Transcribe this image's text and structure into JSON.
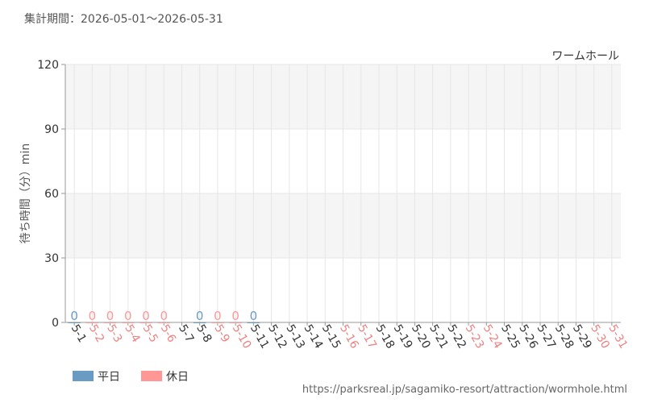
{
  "header": "集計期間：2026-05-01～2026-05-31",
  "source": "https://parksreal.jp/sagamiko-resort/attraction/wormhole.html",
  "chart_data": {
    "type": "bar",
    "title": "ワームホール",
    "y_label": "待ち時間（分）min",
    "categories": [
      "5-1",
      "5-2",
      "5-3",
      "5-4",
      "5-5",
      "5-6",
      "5-7",
      "5-8",
      "5-9",
      "5-10",
      "5-11",
      "5-12",
      "5-13",
      "5-14",
      "5-15",
      "5-16",
      "5-17",
      "5-18",
      "5-19",
      "5-20",
      "5-21",
      "5-22",
      "5-23",
      "5-24",
      "5-25",
      "5-26",
      "5-27",
      "5-28",
      "5-29",
      "5-30",
      "5-31"
    ],
    "category_colors": [
      "#333",
      "#f08080",
      "#f08080",
      "#f08080",
      "#f08080",
      "#f08080",
      "#333",
      "#333",
      "#f08080",
      "#f08080",
      "#333",
      "#333",
      "#333",
      "#333",
      "#333",
      "#f08080",
      "#f08080",
      "#333",
      "#333",
      "#333",
      "#333",
      "#333",
      "#f08080",
      "#f08080",
      "#333",
      "#333",
      "#333",
      "#333",
      "#333",
      "#f08080",
      "#f08080"
    ],
    "series": [
      {
        "name": "平日",
        "color": "#6a9bc3",
        "values": [
          0,
          null,
          null,
          null,
          null,
          null,
          null,
          0,
          null,
          null,
          0,
          null,
          null,
          null,
          null,
          null,
          null,
          null,
          null,
          null,
          null,
          null,
          null,
          null,
          null,
          null,
          null,
          null,
          null,
          null,
          null
        ]
      },
      {
        "name": "休日",
        "color": "#ff9797",
        "values": [
          null,
          0,
          0,
          0,
          0,
          0,
          null,
          null,
          0,
          0,
          null,
          null,
          null,
          null,
          null,
          null,
          null,
          null,
          null,
          null,
          null,
          null,
          null,
          null,
          null,
          null,
          null,
          null,
          null,
          null,
          null
        ]
      }
    ],
    "ylim": [
      0,
      120
    ],
    "yticks": [
      0,
      30,
      60,
      90,
      120
    ],
    "grid": true,
    "band_color": "#f5f5f5"
  }
}
